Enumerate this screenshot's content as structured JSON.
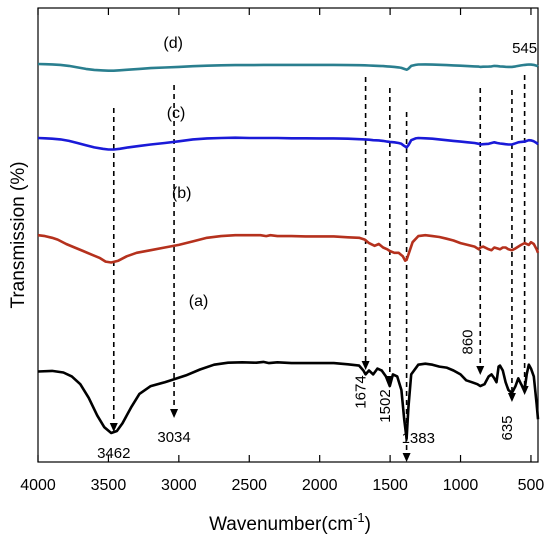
{
  "chart_data": {
    "type": "line",
    "xlabel": "Wavenumber(cm",
    "xlabel_sup": "-1",
    "xlabel_close": ")",
    "ylabel": "Transmission (%)",
    "xlim": [
      4000,
      450
    ],
    "x_reversed": true,
    "x_ticks": [
      4000,
      3500,
      3000,
      2500,
      2000,
      1500,
      1000,
      500
    ],
    "y_ticks_shown": false,
    "series": [
      {
        "name": "(a)",
        "color": "#000000",
        "points": [
          [
            4000,
            0.315
          ],
          [
            3900,
            0.312
          ],
          [
            3820,
            0.32
          ],
          [
            3760,
            0.34
          ],
          [
            3700,
            0.38
          ],
          [
            3640,
            0.45
          ],
          [
            3580,
            0.54
          ],
          [
            3530,
            0.6
          ],
          [
            3480,
            0.63
          ],
          [
            3440,
            0.62
          ],
          [
            3400,
            0.58
          ],
          [
            3340,
            0.5
          ],
          [
            3280,
            0.43
          ],
          [
            3200,
            0.39
          ],
          [
            3100,
            0.37
          ],
          [
            3034,
            0.355
          ],
          [
            2950,
            0.335
          ],
          [
            2850,
            0.305
          ],
          [
            2750,
            0.28
          ],
          [
            2650,
            0.27
          ],
          [
            2550,
            0.268
          ],
          [
            2450,
            0.27
          ],
          [
            2400,
            0.266
          ],
          [
            2360,
            0.272
          ],
          [
            2300,
            0.268
          ],
          [
            2200,
            0.272
          ],
          [
            2100,
            0.272
          ],
          [
            2000,
            0.272
          ],
          [
            1900,
            0.272
          ],
          [
            1800,
            0.278
          ],
          [
            1720,
            0.285
          ],
          [
            1690,
            0.31
          ],
          [
            1674,
            0.33
          ],
          [
            1650,
            0.31
          ],
          [
            1620,
            0.33
          ],
          [
            1590,
            0.3
          ],
          [
            1560,
            0.31
          ],
          [
            1530,
            0.34
          ],
          [
            1502,
            0.39
          ],
          [
            1480,
            0.33
          ],
          [
            1450,
            0.34
          ],
          [
            1420,
            0.41
          ],
          [
            1400,
            0.56
          ],
          [
            1383,
            0.66
          ],
          [
            1370,
            0.5
          ],
          [
            1350,
            0.33
          ],
          [
            1300,
            0.28
          ],
          [
            1250,
            0.275
          ],
          [
            1200,
            0.28
          ],
          [
            1150,
            0.29
          ],
          [
            1100,
            0.295
          ],
          [
            1050,
            0.31
          ],
          [
            1000,
            0.33
          ],
          [
            960,
            0.36
          ],
          [
            920,
            0.37
          ],
          [
            880,
            0.38
          ],
          [
            860,
            0.39
          ],
          [
            830,
            0.38
          ],
          [
            800,
            0.34
          ],
          [
            780,
            0.33
          ],
          [
            760,
            0.35
          ],
          [
            745,
            0.37
          ],
          [
            730,
            0.29
          ],
          [
            720,
            0.285
          ],
          [
            700,
            0.31
          ],
          [
            680,
            0.37
          ],
          [
            660,
            0.41
          ],
          [
            635,
            0.425
          ],
          [
            610,
            0.39
          ],
          [
            590,
            0.35
          ],
          [
            570,
            0.38
          ],
          [
            545,
            0.41
          ],
          [
            530,
            0.33
          ],
          [
            515,
            0.28
          ],
          [
            500,
            0.3
          ],
          [
            480,
            0.34
          ],
          [
            460,
            0.48
          ],
          [
            450,
            0.56
          ]
        ]
      },
      {
        "name": "(b)",
        "color": "#b5311d",
        "points": [
          [
            4000,
            0.2
          ],
          [
            3950,
            0.205
          ],
          [
            3900,
            0.215
          ],
          [
            3860,
            0.225
          ],
          [
            3800,
            0.25
          ],
          [
            3740,
            0.27
          ],
          [
            3680,
            0.29
          ],
          [
            3620,
            0.31
          ],
          [
            3560,
            0.33
          ],
          [
            3520,
            0.35
          ],
          [
            3480,
            0.355
          ],
          [
            3430,
            0.345
          ],
          [
            3370,
            0.32
          ],
          [
            3300,
            0.3
          ],
          [
            3200,
            0.285
          ],
          [
            3100,
            0.27
          ],
          [
            3000,
            0.255
          ],
          [
            2900,
            0.235
          ],
          [
            2800,
            0.215
          ],
          [
            2700,
            0.205
          ],
          [
            2600,
            0.2
          ],
          [
            2500,
            0.2
          ],
          [
            2420,
            0.2
          ],
          [
            2380,
            0.205
          ],
          [
            2350,
            0.2
          ],
          [
            2300,
            0.205
          ],
          [
            2200,
            0.205
          ],
          [
            2100,
            0.207
          ],
          [
            2000,
            0.207
          ],
          [
            1900,
            0.207
          ],
          [
            1800,
            0.212
          ],
          [
            1720,
            0.215
          ],
          [
            1680,
            0.225
          ],
          [
            1650,
            0.245
          ],
          [
            1610,
            0.26
          ],
          [
            1580,
            0.25
          ],
          [
            1550,
            0.27
          ],
          [
            1520,
            0.28
          ],
          [
            1502,
            0.29
          ],
          [
            1470,
            0.3
          ],
          [
            1440,
            0.3
          ],
          [
            1410,
            0.32
          ],
          [
            1393,
            0.345
          ],
          [
            1383,
            0.34
          ],
          [
            1370,
            0.31
          ],
          [
            1340,
            0.24
          ],
          [
            1300,
            0.205
          ],
          [
            1250,
            0.2
          ],
          [
            1200,
            0.205
          ],
          [
            1150,
            0.21
          ],
          [
            1100,
            0.22
          ],
          [
            1050,
            0.23
          ],
          [
            1000,
            0.245
          ],
          [
            950,
            0.255
          ],
          [
            900,
            0.265
          ],
          [
            870,
            0.28
          ],
          [
            860,
            0.27
          ],
          [
            840,
            0.265
          ],
          [
            800,
            0.28
          ],
          [
            780,
            0.285
          ],
          [
            760,
            0.27
          ],
          [
            740,
            0.275
          ],
          [
            720,
            0.28
          ],
          [
            700,
            0.27
          ],
          [
            680,
            0.27
          ],
          [
            660,
            0.28
          ],
          [
            635,
            0.285
          ],
          [
            610,
            0.275
          ],
          [
            590,
            0.265
          ],
          [
            570,
            0.255
          ],
          [
            545,
            0.245
          ],
          [
            530,
            0.25
          ],
          [
            515,
            0.255
          ],
          [
            500,
            0.24
          ],
          [
            480,
            0.25
          ],
          [
            460,
            0.28
          ],
          [
            450,
            0.3
          ]
        ]
      },
      {
        "name": "(c)",
        "color": "#1a1ad8",
        "points": [
          [
            4000,
            0.125
          ],
          [
            3950,
            0.127
          ],
          [
            3900,
            0.13
          ],
          [
            3840,
            0.135
          ],
          [
            3780,
            0.145
          ],
          [
            3720,
            0.16
          ],
          [
            3660,
            0.175
          ],
          [
            3600,
            0.19
          ],
          [
            3540,
            0.2
          ],
          [
            3500,
            0.205
          ],
          [
            3462,
            0.205
          ],
          [
            3420,
            0.2
          ],
          [
            3360,
            0.19
          ],
          [
            3280,
            0.18
          ],
          [
            3200,
            0.17
          ],
          [
            3100,
            0.16
          ],
          [
            3000,
            0.148
          ],
          [
            2900,
            0.135
          ],
          [
            2800,
            0.128
          ],
          [
            2700,
            0.125
          ],
          [
            2600,
            0.123
          ],
          [
            2500,
            0.125
          ],
          [
            2400,
            0.125
          ],
          [
            2300,
            0.125
          ],
          [
            2200,
            0.127
          ],
          [
            2100,
            0.127
          ],
          [
            2000,
            0.128
          ],
          [
            1900,
            0.128
          ],
          [
            1800,
            0.13
          ],
          [
            1720,
            0.133
          ],
          [
            1680,
            0.135
          ],
          [
            1650,
            0.137
          ],
          [
            1620,
            0.14
          ],
          [
            1580,
            0.142
          ],
          [
            1550,
            0.145
          ],
          [
            1520,
            0.15
          ],
          [
            1502,
            0.152
          ],
          [
            1470,
            0.155
          ],
          [
            1440,
            0.16
          ],
          [
            1420,
            0.165
          ],
          [
            1400,
            0.18
          ],
          [
            1383,
            0.19
          ],
          [
            1370,
            0.175
          ],
          [
            1350,
            0.14
          ],
          [
            1320,
            0.128
          ],
          [
            1300,
            0.125
          ],
          [
            1250,
            0.127
          ],
          [
            1200,
            0.13
          ],
          [
            1150,
            0.135
          ],
          [
            1100,
            0.14
          ],
          [
            1050,
            0.145
          ],
          [
            1000,
            0.15
          ],
          [
            950,
            0.155
          ],
          [
            900,
            0.16
          ],
          [
            870,
            0.165
          ],
          [
            860,
            0.17
          ],
          [
            840,
            0.168
          ],
          [
            800,
            0.165
          ],
          [
            780,
            0.16
          ],
          [
            760,
            0.155
          ],
          [
            740,
            0.16
          ],
          [
            720,
            0.163
          ],
          [
            700,
            0.165
          ],
          [
            680,
            0.168
          ],
          [
            660,
            0.17
          ],
          [
            635,
            0.17
          ],
          [
            610,
            0.162
          ],
          [
            590,
            0.155
          ],
          [
            570,
            0.152
          ],
          [
            545,
            0.15
          ],
          [
            530,
            0.145
          ],
          [
            515,
            0.14
          ],
          [
            500,
            0.142
          ],
          [
            480,
            0.148
          ],
          [
            460,
            0.16
          ],
          [
            450,
            0.168
          ]
        ]
      },
      {
        "name": "(d)",
        "color": "#2a7f8f",
        "points": [
          [
            4000,
            0.06
          ],
          [
            3950,
            0.062
          ],
          [
            3900,
            0.065
          ],
          [
            3840,
            0.07
          ],
          [
            3780,
            0.08
          ],
          [
            3720,
            0.095
          ],
          [
            3660,
            0.11
          ],
          [
            3600,
            0.12
          ],
          [
            3540,
            0.125
          ],
          [
            3500,
            0.128
          ],
          [
            3462,
            0.128
          ],
          [
            3420,
            0.124
          ],
          [
            3360,
            0.118
          ],
          [
            3280,
            0.11
          ],
          [
            3200,
            0.102
          ],
          [
            3100,
            0.096
          ],
          [
            3000,
            0.09
          ],
          [
            2900,
            0.083
          ],
          [
            2800,
            0.078
          ],
          [
            2700,
            0.074
          ],
          [
            2600,
            0.072
          ],
          [
            2500,
            0.072
          ],
          [
            2400,
            0.07
          ],
          [
            2300,
            0.07
          ],
          [
            2200,
            0.07
          ],
          [
            2100,
            0.07
          ],
          [
            2000,
            0.07
          ],
          [
            1900,
            0.07
          ],
          [
            1800,
            0.072
          ],
          [
            1720,
            0.073
          ],
          [
            1680,
            0.074
          ],
          [
            1650,
            0.076
          ],
          [
            1620,
            0.078
          ],
          [
            1580,
            0.08
          ],
          [
            1550,
            0.082
          ],
          [
            1520,
            0.085
          ],
          [
            1502,
            0.087
          ],
          [
            1470,
            0.09
          ],
          [
            1440,
            0.095
          ],
          [
            1420,
            0.1
          ],
          [
            1400,
            0.11
          ],
          [
            1383,
            0.118
          ],
          [
            1370,
            0.108
          ],
          [
            1350,
            0.08
          ],
          [
            1320,
            0.07
          ],
          [
            1300,
            0.066
          ],
          [
            1250,
            0.065
          ],
          [
            1200,
            0.067
          ],
          [
            1150,
            0.069
          ],
          [
            1100,
            0.072
          ],
          [
            1050,
            0.075
          ],
          [
            1000,
            0.078
          ],
          [
            950,
            0.082
          ],
          [
            900,
            0.085
          ],
          [
            870,
            0.087
          ],
          [
            860,
            0.09
          ],
          [
            840,
            0.088
          ],
          [
            800,
            0.087
          ],
          [
            780,
            0.085
          ],
          [
            760,
            0.08
          ],
          [
            740,
            0.082
          ],
          [
            720,
            0.085
          ],
          [
            700,
            0.087
          ],
          [
            680,
            0.089
          ],
          [
            660,
            0.09
          ],
          [
            635,
            0.09
          ],
          [
            610,
            0.085
          ],
          [
            590,
            0.08
          ],
          [
            570,
            0.075
          ],
          [
            545,
            0.07
          ],
          [
            530,
            0.068
          ],
          [
            515,
            0.066
          ],
          [
            500,
            0.067
          ],
          [
            480,
            0.07
          ],
          [
            460,
            0.078
          ],
          [
            450,
            0.084
          ]
        ]
      }
    ],
    "annotations": [
      {
        "label": "3462",
        "x": 3462
      },
      {
        "label": "3034",
        "x": 3034
      },
      {
        "label": "1674",
        "x": 1674
      },
      {
        "label": "1502",
        "x": 1502
      },
      {
        "label": "1383",
        "x": 1383
      },
      {
        "label": "860",
        "x": 860
      },
      {
        "label": "635",
        "x": 635
      },
      {
        "label": "545",
        "x": 545
      }
    ]
  }
}
